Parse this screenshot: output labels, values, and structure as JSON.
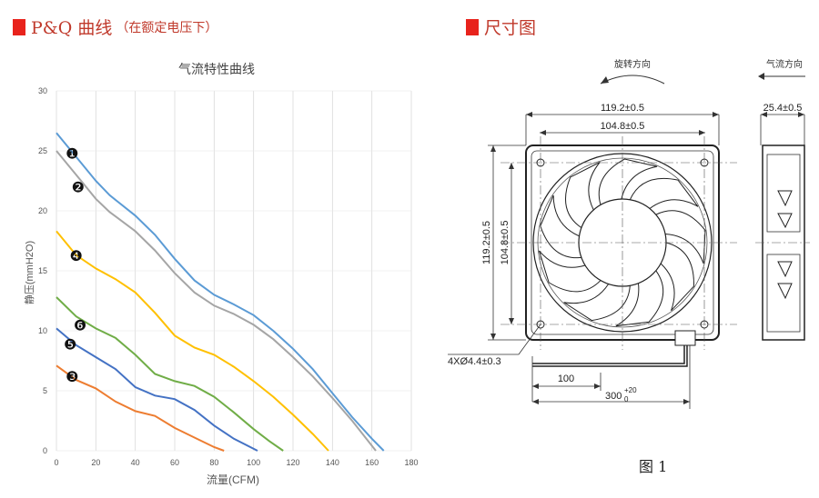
{
  "left_header": {
    "title": "P&Q 曲线",
    "subtitle": "（在额定电压下）"
  },
  "right_header": {
    "title": "尺寸图"
  },
  "chart_data": {
    "type": "line",
    "title": "气流特性曲线",
    "xlabel": "流量(CFM)",
    "ylabel": "静压(mmH2O)",
    "xlim": [
      0,
      180
    ],
    "ylim": [
      0,
      30
    ],
    "xticks": [
      0,
      20,
      40,
      60,
      80,
      100,
      120,
      140,
      160,
      180
    ],
    "yticks": [
      0,
      5,
      10,
      15,
      20,
      25,
      30
    ],
    "grid": true,
    "series": [
      {
        "marker": "❶",
        "color": "#5b9bd5",
        "x": [
          0,
          10,
          20,
          27,
          40,
          50,
          60,
          70,
          80,
          90,
          100,
          110,
          120,
          130,
          140,
          150,
          160,
          166
        ],
        "y": [
          26.5,
          24.5,
          22.5,
          21.3,
          19.6,
          18.0,
          16.0,
          14.2,
          13.0,
          12.2,
          11.3,
          10.0,
          8.5,
          6.8,
          4.8,
          2.8,
          1.0,
          0
        ]
      },
      {
        "marker": "❷",
        "color": "#a5a5a5",
        "x": [
          0,
          10,
          20,
          27,
          40,
          50,
          60,
          70,
          80,
          90,
          100,
          110,
          120,
          130,
          140,
          150,
          162
        ],
        "y": [
          25.0,
          23.0,
          21.0,
          19.9,
          18.3,
          16.7,
          14.8,
          13.2,
          12.1,
          11.4,
          10.5,
          9.3,
          7.8,
          6.2,
          4.4,
          2.5,
          0
        ]
      },
      {
        "marker": "❹",
        "color": "#ffc000",
        "x": [
          0,
          10,
          20,
          30,
          40,
          50,
          60,
          70,
          80,
          90,
          100,
          110,
          120,
          130,
          138
        ],
        "y": [
          18.3,
          16.3,
          15.2,
          14.3,
          13.2,
          11.5,
          9.6,
          8.6,
          8.0,
          7.0,
          5.8,
          4.5,
          3.0,
          1.4,
          0
        ]
      },
      {
        "marker": "❻",
        "color": "#70ad47",
        "x": [
          0,
          10,
          20,
          30,
          40,
          50,
          60,
          70,
          80,
          90,
          100,
          108,
          115
        ],
        "y": [
          12.8,
          11.2,
          10.2,
          9.4,
          8.0,
          6.4,
          5.8,
          5.4,
          4.5,
          3.2,
          1.8,
          0.8,
          0
        ]
      },
      {
        "marker": "❺",
        "color": "#4472c4",
        "x": [
          0,
          10,
          20,
          30,
          40,
          50,
          60,
          70,
          80,
          90,
          102
        ],
        "y": [
          10.2,
          8.8,
          7.8,
          6.8,
          5.3,
          4.6,
          4.3,
          3.4,
          2.1,
          1.0,
          0
        ]
      },
      {
        "marker": "❸",
        "color": "#ed7d31",
        "x": [
          0,
          10,
          20,
          30,
          40,
          50,
          60,
          70,
          80,
          85
        ],
        "y": [
          7.1,
          5.9,
          5.2,
          4.1,
          3.3,
          2.9,
          1.9,
          1.1,
          0.3,
          0
        ]
      }
    ],
    "marker_positions": [
      [
        8,
        24.8
      ],
      [
        11,
        22.0
      ],
      [
        10,
        16.3
      ],
      [
        12,
        10.5
      ],
      [
        7,
        8.9
      ],
      [
        8,
        6.2
      ]
    ]
  },
  "dimension_drawing": {
    "rotation_label": "旋转方向",
    "airflow_label": "气流方向",
    "overall_width": "119.2±0.5",
    "hole_spacing": "104.8±0.5",
    "overall_height": "119.2±0.5",
    "hole_spacing_v": "104.8±0.5",
    "thickness": "25.4±0.5",
    "holes": "4XØ4.4±0.3",
    "lead_partial": "100",
    "lead_total": "300",
    "lead_tolerance_upper": "+20",
    "lead_tolerance_lower": "0",
    "figure_label": "图 1"
  }
}
